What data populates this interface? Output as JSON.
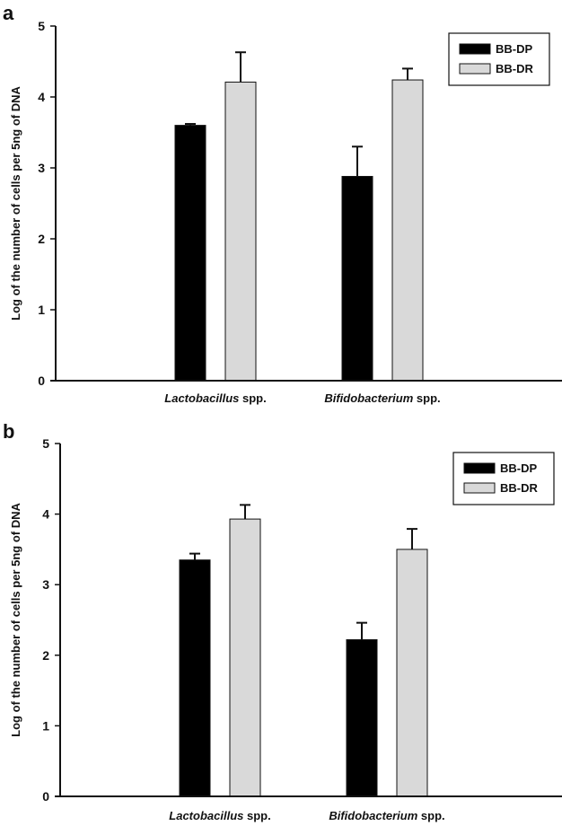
{
  "colors": {
    "BB-DP": "#000000",
    "BB-DR": "#d9d9d9",
    "axis": "#111111"
  },
  "chart_data": [
    {
      "panel": "a",
      "type": "bar",
      "ylabel": "Log of the number of cells per 5ng of DNA",
      "xlabel": "",
      "ylim": [
        0,
        5
      ],
      "yticks": [
        0,
        1,
        2,
        3,
        4,
        5
      ],
      "grid": false,
      "legend_position": "top-right",
      "categories": [
        {
          "italic": "Lactobacillus",
          "suffix": " spp."
        },
        {
          "italic": "Bifidobacterium",
          "suffix": " spp."
        }
      ],
      "series": [
        {
          "name": "BB-DP",
          "values": [
            3.6,
            2.88
          ],
          "errors": [
            0.02,
            0.42
          ]
        },
        {
          "name": "BB-DR",
          "values": [
            4.21,
            4.24
          ],
          "errors": [
            0.42,
            0.16
          ]
        }
      ]
    },
    {
      "panel": "b",
      "type": "bar",
      "ylabel": "Log of the number of cells per 5ng of DNA",
      "xlabel": "",
      "ylim": [
        0,
        5
      ],
      "yticks": [
        0,
        1,
        2,
        3,
        4,
        5
      ],
      "grid": false,
      "legend_position": "top-right",
      "categories": [
        {
          "italic": "Lactobacillus",
          "suffix": " spp."
        },
        {
          "italic": "Bifidobacterium",
          "suffix": " spp."
        }
      ],
      "series": [
        {
          "name": "BB-DP",
          "values": [
            3.35,
            2.22
          ],
          "errors": [
            0.09,
            0.24
          ]
        },
        {
          "name": "BB-DR",
          "values": [
            3.93,
            3.5
          ],
          "errors": [
            0.2,
            0.29
          ]
        }
      ]
    }
  ]
}
